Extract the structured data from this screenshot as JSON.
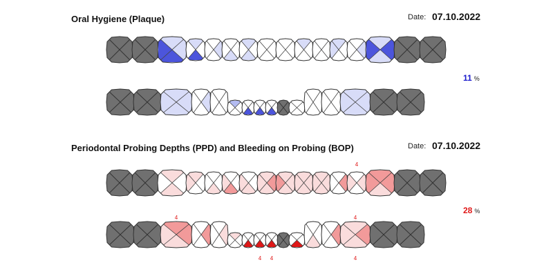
{
  "colors": {
    "missing": "#707070",
    "outline": "#333333",
    "plaque": [
      "#ffffff",
      "#d8dcf8",
      "#b4bcf2",
      "#4c55dc"
    ],
    "perio": [
      "#ffffff",
      "#fadcdc",
      "#f29a9a",
      "#e01818"
    ],
    "plaque_percent": "#1a1acc",
    "perio_percent": "#e01818"
  },
  "sections": [
    {
      "title": "Oral Hygiene (Plaque)",
      "date_label": "Date:",
      "date": "07.10.2022",
      "percent": "11",
      "percent_unit": "%",
      "arches": [
        {
          "teeth": [
            {
              "missing": true
            },
            {
              "missing": true
            },
            {
              "s": [
                1,
                1,
                3,
                3,
                1
              ]
            },
            {
              "s": [
                1,
                0,
                3,
                0,
                0
              ]
            },
            {
              "s": [
                0,
                1,
                0,
                0,
                0
              ]
            },
            {
              "s": [
                0,
                0,
                1,
                0,
                0
              ]
            },
            {
              "s": [
                1,
                0,
                1,
                0,
                0
              ]
            },
            {
              "s": [
                0,
                0,
                0,
                0,
                0
              ]
            },
            {
              "s": [
                0,
                0,
                0,
                0,
                0
              ]
            },
            {
              "s": [
                1,
                0,
                0,
                0,
                0
              ]
            },
            {
              "s": [
                0,
                0,
                0,
                0,
                0
              ]
            },
            {
              "s": [
                1,
                0,
                0,
                1,
                0
              ]
            },
            {
              "s": [
                0,
                1,
                0,
                0,
                0
              ]
            },
            {
              "s": [
                1,
                3,
                1,
                3,
                1
              ]
            },
            {
              "missing": true
            },
            {
              "missing": true
            }
          ],
          "labels_top": [],
          "labels_bottom": []
        },
        {
          "teeth": [
            {
              "missing": true
            },
            {
              "missing": true
            },
            {
              "s": [
                1,
                1,
                1,
                1,
                1
              ]
            },
            {
              "s": [
                0,
                1,
                0,
                0,
                0
              ]
            },
            {
              "s": [
                0,
                0,
                0,
                0,
                0
              ]
            },
            {
              "s": [
                2,
                0,
                0,
                0,
                0
              ]
            },
            {
              "s": [
                0,
                0,
                0,
                0,
                0
              ],
              "tri": "blue"
            },
            {
              "s": [
                0,
                0,
                0,
                0,
                0
              ],
              "tri": "blue"
            },
            {
              "s": [
                0,
                0,
                0,
                0,
                0
              ],
              "tri": "blue"
            },
            {
              "missing": true
            },
            {
              "s": [
                0,
                0,
                0,
                0,
                0
              ]
            },
            {
              "s": [
                0,
                0,
                0,
                0,
                0
              ]
            },
            {
              "s": [
                0,
                0,
                0,
                0,
                0
              ]
            },
            {
              "s": [
                1,
                1,
                1,
                1,
                1
              ]
            },
            {
              "missing": true
            },
            {
              "missing": true
            }
          ],
          "labels_top": [],
          "labels_bottom": []
        }
      ]
    },
    {
      "title": "Periodontal Probing Depths (PPD) and Bleeding on Probing (BOP)",
      "date_label": "Date:",
      "date": "07.10.2022",
      "percent": "28",
      "percent_unit": "%",
      "arches": [
        {
          "teeth": [
            {
              "missing": true
            },
            {
              "missing": true
            },
            {
              "s": [
                1,
                0,
                1,
                0,
                0
              ]
            },
            {
              "s": [
                1,
                0,
                0,
                1,
                0
              ]
            },
            {
              "s": [
                0,
                0,
                1,
                0,
                0
              ]
            },
            {
              "s": [
                0,
                0,
                2,
                1,
                0
              ]
            },
            {
              "s": [
                0,
                0,
                1,
                1,
                0
              ]
            },
            {
              "s": [
                0,
                2,
                0,
                0,
                1
              ]
            },
            {
              "s": [
                0,
                1,
                0,
                2,
                1
              ]
            },
            {
              "s": [
                0,
                0,
                0,
                0,
                1
              ]
            },
            {
              "s": [
                0,
                0,
                1,
                0,
                1
              ]
            },
            {
              "s": [
                0,
                2,
                0,
                0,
                0
              ]
            },
            {
              "s": [
                0,
                1,
                0,
                1,
                0
              ]
            },
            {
              "s": [
                2,
                2,
                1,
                2,
                1
              ]
            },
            {
              "missing": true
            },
            {
              "missing": true
            }
          ],
          "labels_top": [
            {
              "tooth": 12,
              "text": "4"
            }
          ],
          "labels_bottom": []
        },
        {
          "teeth": [
            {
              "missing": true
            },
            {
              "missing": true
            },
            {
              "s": [
                2,
                2,
                1,
                1,
                1
              ]
            },
            {
              "s": [
                0,
                2,
                0,
                0,
                0
              ]
            },
            {
              "s": [
                0,
                1,
                0,
                0,
                0
              ]
            },
            {
              "s": [
                1,
                0,
                0,
                0,
                0
              ]
            },
            {
              "s": [
                0,
                0,
                0,
                0,
                0
              ],
              "tri": "red"
            },
            {
              "s": [
                0,
                0,
                0,
                0,
                0
              ],
              "tri": "red"
            },
            {
              "s": [
                0,
                0,
                0,
                0,
                0
              ],
              "tri": "red"
            },
            {
              "missing": true
            },
            {
              "s": [
                0,
                0,
                3,
                0,
                0
              ]
            },
            {
              "s": [
                0,
                0,
                1,
                0,
                0
              ]
            },
            {
              "s": [
                0,
                2,
                0,
                0,
                0
              ]
            },
            {
              "s": [
                1,
                2,
                1,
                0,
                1
              ]
            },
            {
              "missing": true
            },
            {
              "missing": true
            }
          ],
          "labels_top": [
            {
              "tooth": 2,
              "text": "4"
            },
            {
              "tooth": 13,
              "text": "4"
            }
          ],
          "labels_bottom": [
            {
              "tooth": 7,
              "text": "4"
            },
            {
              "tooth": 8,
              "text": "4"
            },
            {
              "tooth": 13,
              "text": "4"
            }
          ]
        }
      ]
    }
  ]
}
